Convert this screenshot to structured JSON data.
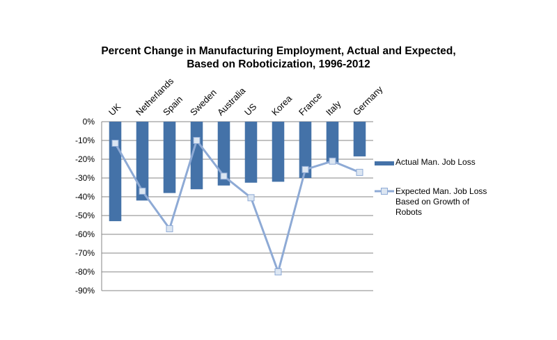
{
  "chart_data": {
    "type": "bar+line",
    "title_line1": "Percent Change in Manufacturing Employment, Actual and Expected,",
    "title_line2": "Based on Roboticization, 1996-2012",
    "categories": [
      "UK",
      "Netherlands",
      "Spain",
      "Sweden",
      "Australia",
      "US",
      "Korea",
      "France",
      "Italy",
      "Germany"
    ],
    "series": [
      {
        "name": "Actual Man. Job Loss",
        "kind": "bar",
        "color": "#4472a8",
        "values": [
          -53,
          -42,
          -38,
          -36,
          -34,
          -32.5,
          -32,
          -30,
          -22,
          -18.5
        ]
      },
      {
        "name": "Expected Man. Job Loss Based on Growth of Robots",
        "kind": "line",
        "color": "#8eaad5",
        "marker_fill": "#dce6f2",
        "values": [
          -11.5,
          -37,
          -57,
          -10,
          -29,
          -40.5,
          -80,
          -25.5,
          -21,
          -27
        ]
      }
    ],
    "ylim": [
      -90,
      0
    ],
    "y_ticks": [
      "0%",
      "-10%",
      "-20%",
      "-30%",
      "-40%",
      "-50%",
      "-60%",
      "-70%",
      "-80%",
      "-90%"
    ],
    "gridlines": true,
    "legend_position": "right"
  },
  "legend": {
    "bar_label": "Actual Man. Job Loss",
    "line_label": "Expected Man. Job Loss Based on Growth of Robots"
  }
}
